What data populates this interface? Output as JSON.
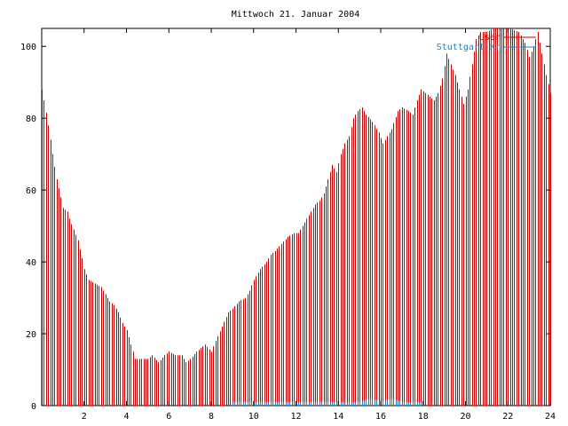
{
  "chart_data": {
    "type": "bar",
    "title": "Mittwoch 21. Januar 2004",
    "xlabel": "",
    "ylabel": "",
    "xlim": [
      0,
      24
    ],
    "ylim": [
      0,
      105
    ],
    "x_ticks": [
      "2",
      "4",
      "6",
      "8",
      "10",
      "12",
      "14",
      "16",
      "18",
      "20",
      "22",
      "24"
    ],
    "y_ticks": [
      "0",
      "20",
      "40",
      "60",
      "80",
      "100"
    ],
    "legend_position": "top-right",
    "series": [
      {
        "name": "User",
        "color": "#cc0000",
        "resolution_hours": 0.1,
        "anchors": [
          [
            0.0,
            88
          ],
          [
            0.1,
            85
          ],
          [
            0.3,
            78
          ],
          [
            0.5,
            70
          ],
          [
            0.7,
            63
          ],
          [
            0.9,
            58
          ],
          [
            1.0,
            55
          ],
          [
            1.2,
            54
          ],
          [
            1.3,
            52
          ],
          [
            1.5,
            49
          ],
          [
            1.7,
            46
          ],
          [
            1.9,
            41
          ],
          [
            2.0,
            38
          ],
          [
            2.2,
            35
          ],
          [
            2.5,
            34
          ],
          [
            2.8,
            33
          ],
          [
            3.0,
            31
          ],
          [
            3.2,
            29
          ],
          [
            3.4,
            28
          ],
          [
            3.6,
            26
          ],
          [
            3.8,
            23
          ],
          [
            4.0,
            21
          ],
          [
            4.2,
            17
          ],
          [
            4.4,
            13
          ],
          [
            5.0,
            13
          ],
          [
            5.2,
            14
          ],
          [
            5.5,
            12
          ],
          [
            5.8,
            14
          ],
          [
            6.0,
            15
          ],
          [
            6.3,
            14
          ],
          [
            6.6,
            14
          ],
          [
            6.8,
            12
          ],
          [
            7.0,
            13
          ],
          [
            7.3,
            15
          ],
          [
            7.7,
            17
          ],
          [
            8.0,
            15
          ],
          [
            8.2,
            18
          ],
          [
            8.5,
            22
          ],
          [
            8.8,
            26
          ],
          [
            9.0,
            27
          ],
          [
            9.3,
            29
          ],
          [
            9.6,
            30
          ],
          [
            9.8,
            32
          ],
          [
            10.0,
            35
          ],
          [
            10.3,
            38
          ],
          [
            10.6,
            40
          ],
          [
            10.8,
            42
          ],
          [
            11.0,
            43
          ],
          [
            11.3,
            45
          ],
          [
            11.6,
            47
          ],
          [
            11.9,
            48
          ],
          [
            12.1,
            48
          ],
          [
            12.3,
            50
          ],
          [
            12.5,
            52
          ],
          [
            12.7,
            54
          ],
          [
            12.9,
            56
          ],
          [
            13.1,
            57
          ],
          [
            13.3,
            59
          ],
          [
            13.5,
            63
          ],
          [
            13.7,
            67
          ],
          [
            13.9,
            65
          ],
          [
            14.1,
            70
          ],
          [
            14.3,
            73
          ],
          [
            14.5,
            75
          ],
          [
            14.7,
            80
          ],
          [
            14.9,
            82
          ],
          [
            15.1,
            83
          ],
          [
            15.3,
            81
          ],
          [
            15.6,
            79
          ],
          [
            15.9,
            76
          ],
          [
            16.1,
            73
          ],
          [
            16.3,
            75
          ],
          [
            16.5,
            77
          ],
          [
            16.8,
            82
          ],
          [
            17.0,
            83
          ],
          [
            17.3,
            82
          ],
          [
            17.5,
            81
          ],
          [
            17.7,
            85
          ],
          [
            17.9,
            88
          ],
          [
            18.1,
            87
          ],
          [
            18.3,
            86
          ],
          [
            18.5,
            85
          ],
          [
            18.7,
            87
          ],
          [
            18.9,
            91
          ],
          [
            19.1,
            98
          ],
          [
            19.3,
            95
          ],
          [
            19.5,
            92
          ],
          [
            19.7,
            88
          ],
          [
            19.9,
            84
          ],
          [
            20.1,
            88
          ],
          [
            20.3,
            95
          ],
          [
            20.5,
            102
          ],
          [
            20.7,
            104
          ],
          [
            21.0,
            104
          ],
          [
            21.3,
            105
          ],
          [
            21.7,
            105
          ],
          [
            22.1,
            105
          ],
          [
            22.5,
            104
          ],
          [
            22.8,
            101
          ],
          [
            23.0,
            97
          ],
          [
            23.2,
            100
          ],
          [
            23.4,
            104
          ],
          [
            23.6,
            98
          ],
          [
            23.8,
            92
          ],
          [
            24.0,
            87
          ]
        ]
      },
      {
        "name": "Stuttgart-Kr",
        "color": "#2a7fbf",
        "resolution_hours": 0.1,
        "anchors": [
          [
            0.0,
            0
          ],
          [
            8.9,
            0
          ],
          [
            9.0,
            1
          ],
          [
            13.0,
            1
          ],
          [
            13.5,
            1
          ],
          [
            14.0,
            1
          ],
          [
            15.0,
            1
          ],
          [
            15.5,
            2
          ],
          [
            16.0,
            1
          ],
          [
            16.5,
            2
          ],
          [
            17.0,
            1
          ],
          [
            17.5,
            1
          ],
          [
            18.0,
            1
          ],
          [
            18.1,
            0
          ],
          [
            24.0,
            0
          ]
        ]
      }
    ]
  }
}
